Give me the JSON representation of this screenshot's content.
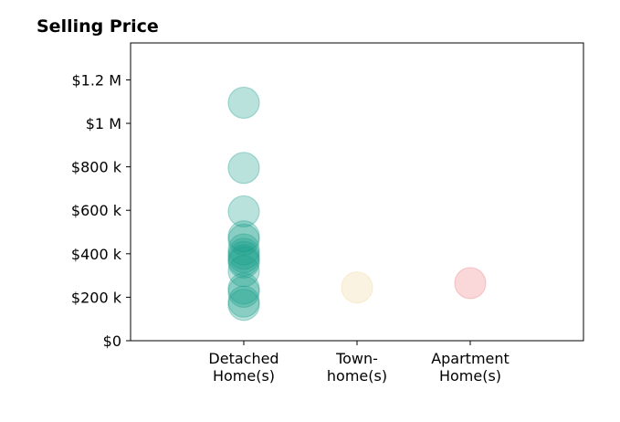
{
  "chart_data": {
    "type": "scatter",
    "title": "Selling Price",
    "xlabel": "",
    "ylabel": "",
    "categories": [
      [
        "Detached",
        "Home(s)"
      ],
      [
        "Town-",
        "home(s)"
      ],
      [
        "Apartment",
        "Home(s)"
      ]
    ],
    "xlim": [
      -1,
      3
    ],
    "ylim": [
      0,
      1370000
    ],
    "yticks": [
      0,
      200000,
      400000,
      600000,
      800000,
      1000000,
      1200000
    ],
    "ytick_labels": [
      "$0",
      "$200 k",
      "$400 k",
      "$600 k",
      "$800 k",
      "$1 M",
      "$1.2 M"
    ],
    "grid": false,
    "points": [
      {
        "category": 0,
        "value": 1095000
      },
      {
        "category": 0,
        "value": 795000
      },
      {
        "category": 0,
        "value": 595000
      },
      {
        "category": 0,
        "value": 480000
      },
      {
        "category": 0,
        "value": 465000
      },
      {
        "category": 0,
        "value": 420000
      },
      {
        "category": 0,
        "value": 400000
      },
      {
        "category": 0,
        "value": 385000
      },
      {
        "category": 0,
        "value": 370000
      },
      {
        "category": 0,
        "value": 360000
      },
      {
        "category": 0,
        "value": 320000
      },
      {
        "category": 0,
        "value": 240000
      },
      {
        "category": 0,
        "value": 225000
      },
      {
        "category": 0,
        "value": 180000
      },
      {
        "category": 0,
        "value": 165000
      },
      {
        "category": 1,
        "value": 245000
      },
      {
        "category": 2,
        "value": 265000
      }
    ],
    "colors": [
      "#1a9e8c",
      "#f0d89a",
      "#ef7f86"
    ],
    "marker_alpha": 0.3
  }
}
